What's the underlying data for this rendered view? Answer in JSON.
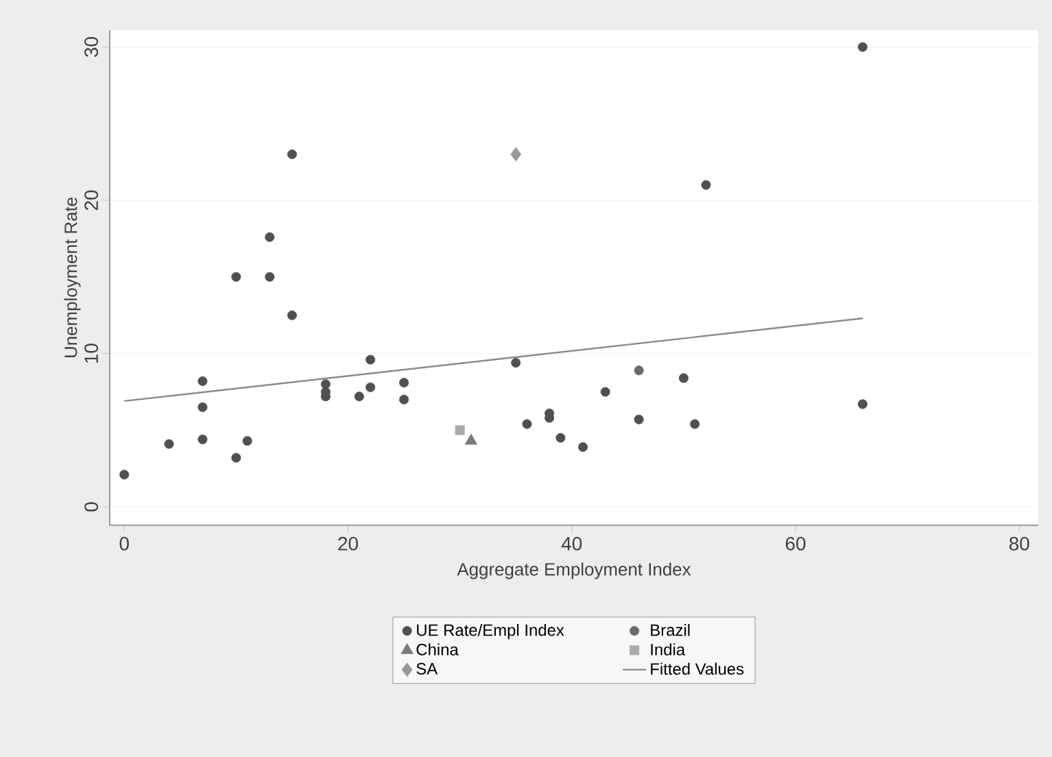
{
  "chart_data": {
    "type": "scatter",
    "xlabel": "Aggregate Employment Index",
    "ylabel": "Unemployment Rate",
    "xlim": [
      -1.3,
      81.7
    ],
    "ylim": [
      -1.2,
      31.1
    ],
    "xticks": [
      0,
      20,
      40,
      60,
      80
    ],
    "yticks": [
      0,
      10,
      20,
      30
    ],
    "grid": "y",
    "legend": "bottom",
    "series": [
      {
        "name": "UE Rate/Empl Index",
        "color": "#505050",
        "marker": "circle",
        "x": [
          0,
          4,
          7,
          7,
          7,
          10,
          10,
          11,
          13,
          13,
          15,
          15,
          18,
          18,
          18,
          21,
          22,
          22,
          25,
          25,
          35,
          36,
          38,
          38,
          39,
          41,
          43,
          46,
          50,
          51,
          52,
          66,
          66
        ],
        "values": [
          2.1,
          4.1,
          8.2,
          6.5,
          4.4,
          15,
          3.2,
          4.3,
          17.6,
          15,
          23,
          12.5,
          8,
          7.5,
          7.2,
          7.2,
          9.6,
          7.8,
          8.1,
          7,
          9.4,
          5.4,
          6.1,
          5.8,
          4.5,
          3.9,
          7.5,
          5.7,
          8.4,
          5.4,
          21,
          30,
          6.7
        ]
      },
      {
        "name": "Brazil",
        "color": "#6a6a6a",
        "marker": "circle",
        "x": [
          46
        ],
        "values": [
          8.9
        ]
      },
      {
        "name": "China",
        "color": "#7a7a7a",
        "marker": "triangle",
        "x": [
          31
        ],
        "values": [
          4.3
        ]
      },
      {
        "name": "India",
        "color": "#aaaaaa",
        "marker": "square",
        "x": [
          30
        ],
        "values": [
          5
        ]
      },
      {
        "name": "SA",
        "color": "#999999",
        "marker": "diamond",
        "x": [
          35
        ],
        "values": [
          23
        ]
      },
      {
        "name": "Fitted Values",
        "type": "line",
        "color": "#8a8a8a",
        "marker": "none",
        "x": [
          0,
          66
        ],
        "values": [
          6.9,
          12.3
        ]
      }
    ]
  }
}
